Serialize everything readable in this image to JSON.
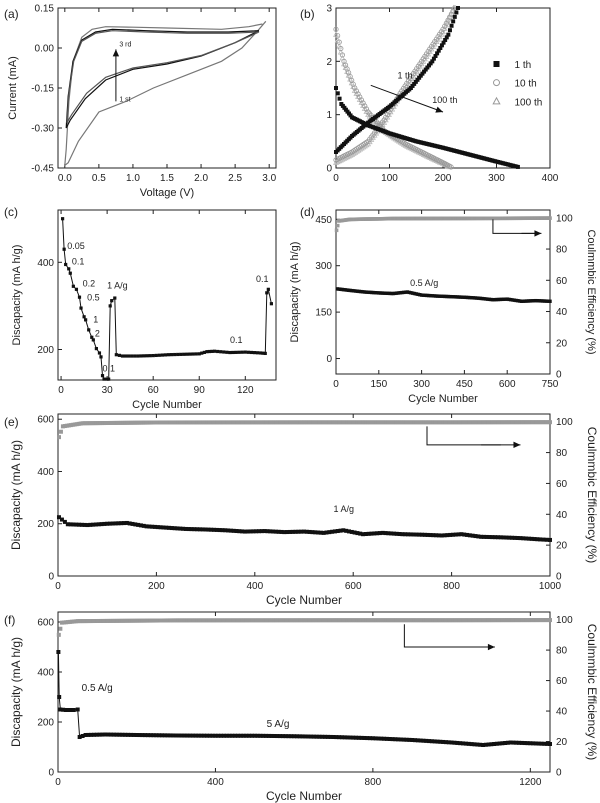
{
  "chart_data": [
    {
      "panel": "(a)",
      "type": "line",
      "xlabel": "Voltage (V)",
      "ylabel": "Current (mA)",
      "xlim": [
        -0.1,
        3.1
      ],
      "ylim": [
        -0.45,
        0.15
      ],
      "xticks": [
        0.0,
        0.5,
        1.0,
        1.5,
        2.0,
        2.5,
        3.0
      ],
      "xtick_labels": [
        "0.0",
        "0.5",
        "1.0",
        "1.5",
        "2.0",
        "2.5",
        "3.0"
      ],
      "yticks": [
        -0.45,
        -0.3,
        -0.15,
        0.0,
        0.15
      ],
      "ytick_labels": [
        "-0.45",
        "-0.30",
        "-0.15",
        "0.00",
        "0.15"
      ],
      "annotations": [
        "3 rd",
        "1 st"
      ],
      "series": [
        {
          "color": "#777777",
          "points": [
            [
              2.9,
              0.09
            ],
            [
              2.7,
              0.08
            ],
            [
              2.3,
              0.07
            ],
            [
              1.5,
              0.075
            ],
            [
              1.0,
              0.078
            ],
            [
              0.6,
              0.08
            ],
            [
              0.4,
              0.07
            ],
            [
              0.25,
              0.04
            ],
            [
              0.12,
              -0.05
            ],
            [
              0.06,
              -0.2
            ],
            [
              0.02,
              -0.38
            ],
            [
              0.0,
              -0.44
            ],
            [
              0.05,
              -0.43
            ],
            [
              0.2,
              -0.35
            ],
            [
              0.5,
              -0.24
            ],
            [
              0.9,
              -0.2
            ],
            [
              1.3,
              -0.15
            ],
            [
              1.8,
              -0.1
            ],
            [
              2.3,
              -0.05
            ],
            [
              2.6,
              0.0
            ],
            [
              2.85,
              0.07
            ],
            [
              2.95,
              0.1
            ]
          ]
        },
        {
          "color": "#111111",
          "points": [
            [
              2.85,
              0.065
            ],
            [
              2.4,
              0.06
            ],
            [
              1.8,
              0.06
            ],
            [
              1.2,
              0.065
            ],
            [
              0.7,
              0.07
            ],
            [
              0.45,
              0.06
            ],
            [
              0.25,
              0.03
            ],
            [
              0.12,
              -0.05
            ],
            [
              0.05,
              -0.18
            ],
            [
              0.02,
              -0.3
            ],
            [
              0.08,
              -0.27
            ],
            [
              0.3,
              -0.19
            ],
            [
              0.6,
              -0.12
            ],
            [
              1.0,
              -0.08
            ],
            [
              1.5,
              -0.06
            ],
            [
              2.0,
              -0.03
            ],
            [
              2.5,
              0.02
            ],
            [
              2.85,
              0.065
            ]
          ]
        },
        {
          "color": "#555555",
          "points": [
            [
              2.85,
              0.06
            ],
            [
              2.4,
              0.055
            ],
            [
              1.8,
              0.055
            ],
            [
              1.2,
              0.06
            ],
            [
              0.7,
              0.065
            ],
            [
              0.45,
              0.055
            ],
            [
              0.25,
              0.025
            ],
            [
              0.13,
              -0.05
            ],
            [
              0.06,
              -0.17
            ],
            [
              0.03,
              -0.28
            ],
            [
              0.1,
              -0.25
            ],
            [
              0.32,
              -0.17
            ],
            [
              0.6,
              -0.11
            ],
            [
              1.0,
              -0.075
            ],
            [
              1.5,
              -0.055
            ],
            [
              2.0,
              -0.028
            ],
            [
              2.5,
              0.02
            ],
            [
              2.85,
              0.06
            ]
          ]
        }
      ]
    },
    {
      "panel": "(b)",
      "type": "scatter",
      "xlim": [
        0,
        400
      ],
      "ylim": [
        0,
        3
      ],
      "xticks": [
        0,
        100,
        200,
        300,
        400
      ],
      "yticks": [
        0,
        1,
        2,
        3
      ],
      "legend": [
        "1 th",
        "10 th",
        "100 th"
      ],
      "legend_position": "right",
      "annotations": [
        "1 th",
        "100 th"
      ],
      "series": [
        {
          "name": "1 th",
          "marker": "square",
          "color": "#111111",
          "discharge": [
            [
              0,
              1.5
            ],
            [
              10,
              1.2
            ],
            [
              30,
              0.95
            ],
            [
              60,
              0.8
            ],
            [
              100,
              0.65
            ],
            [
              150,
              0.5
            ],
            [
              200,
              0.38
            ],
            [
              250,
              0.25
            ],
            [
              300,
              0.12
            ],
            [
              340,
              0.02
            ]
          ],
          "charge": [
            [
              0,
              0.3
            ],
            [
              30,
              0.6
            ],
            [
              60,
              0.85
            ],
            [
              100,
              1.15
            ],
            [
              140,
              1.5
            ],
            [
              180,
              2.0
            ],
            [
              210,
              2.5
            ],
            [
              228,
              3.0
            ]
          ]
        },
        {
          "name": "10 th",
          "marker": "star",
          "color": "#999999",
          "discharge": [
            [
              0,
              2.6
            ],
            [
              15,
              2.0
            ],
            [
              35,
              1.5
            ],
            [
              60,
              1.05
            ],
            [
              90,
              0.7
            ],
            [
              130,
              0.45
            ],
            [
              170,
              0.25
            ],
            [
              200,
              0.1
            ],
            [
              215,
              0.02
            ]
          ],
          "charge": [
            [
              0,
              0.15
            ],
            [
              30,
              0.3
            ],
            [
              60,
              0.5
            ],
            [
              90,
              0.9
            ],
            [
              120,
              1.4
            ],
            [
              160,
              2.0
            ],
            [
              200,
              2.6
            ],
            [
              222,
              3.0
            ]
          ]
        },
        {
          "name": "100 th",
          "marker": "triangle",
          "color": "#bbbbbb",
          "discharge": [
            [
              0,
              2.5
            ],
            [
              15,
              1.95
            ],
            [
              35,
              1.45
            ],
            [
              60,
              1.0
            ],
            [
              90,
              0.68
            ],
            [
              130,
              0.42
            ],
            [
              170,
              0.22
            ],
            [
              200,
              0.08
            ],
            [
              212,
              0.02
            ]
          ],
          "charge": [
            [
              0,
              0.1
            ],
            [
              30,
              0.25
            ],
            [
              60,
              0.45
            ],
            [
              90,
              0.85
            ],
            [
              120,
              1.35
            ],
            [
              160,
              1.95
            ],
            [
              200,
              2.55
            ],
            [
              220,
              3.0
            ]
          ]
        }
      ]
    },
    {
      "panel": "(c)",
      "type": "line",
      "xlabel": "Cycle Number",
      "ylabel": "Discapacity (mA h/g)",
      "xlim": [
        -2,
        140
      ],
      "ylim": [
        130,
        520
      ],
      "xticks": [
        0,
        30,
        60,
        90,
        120
      ],
      "yticks": [
        200,
        400
      ],
      "annotations": [
        "0.05",
        "0.1",
        "0.2",
        "0.5",
        "1",
        "2",
        "0.1",
        "1 A/g",
        "0.1"
      ],
      "points": [
        [
          1,
          500
        ],
        [
          2,
          430
        ],
        [
          3,
          395
        ],
        [
          5,
          385
        ],
        [
          6,
          375
        ],
        [
          8,
          345
        ],
        [
          10,
          338
        ],
        [
          12,
          320
        ],
        [
          13,
          295
        ],
        [
          15,
          275
        ],
        [
          16,
          268
        ],
        [
          18,
          245
        ],
        [
          20,
          228
        ],
        [
          21,
          222
        ],
        [
          23,
          202
        ],
        [
          25,
          192
        ],
        [
          26,
          183
        ],
        [
          27,
          140
        ],
        [
          28,
          132
        ],
        [
          30,
          132
        ],
        [
          31,
          132
        ],
        [
          32,
          300
        ],
        [
          33,
          312
        ],
        [
          35,
          318
        ],
        [
          36,
          188
        ],
        [
          40,
          185
        ],
        [
          50,
          185
        ],
        [
          60,
          186
        ],
        [
          70,
          188
        ],
        [
          80,
          189
        ],
        [
          90,
          190
        ],
        [
          95,
          195
        ],
        [
          100,
          196
        ],
        [
          110,
          193
        ],
        [
          120,
          194
        ],
        [
          130,
          192
        ],
        [
          133,
          191
        ],
        [
          134,
          330
        ],
        [
          135,
          338
        ],
        [
          137,
          305
        ]
      ]
    },
    {
      "panel": "(d)",
      "type": "scatter",
      "xlabel": "Cycle Number",
      "ylabel": "Discapacity (mA h/g)",
      "y2label": "Coulmmbic Efficiency (%)",
      "xlim": [
        0,
        750
      ],
      "ylim": [
        -50,
        480
      ],
      "y2lim": [
        0,
        105
      ],
      "xticks": [
        0,
        150,
        300,
        450,
        600,
        750
      ],
      "yticks": [
        0,
        150,
        300,
        450
      ],
      "y2ticks": [
        0,
        20,
        40,
        60,
        80,
        100
      ],
      "annotations": [
        "0.5 A/g"
      ],
      "capacity": [
        [
          5,
          225
        ],
        [
          50,
          220
        ],
        [
          100,
          215
        ],
        [
          150,
          212
        ],
        [
          200,
          210
        ],
        [
          250,
          215
        ],
        [
          300,
          205
        ],
        [
          350,
          202
        ],
        [
          400,
          200
        ],
        [
          450,
          198
        ],
        [
          500,
          195
        ],
        [
          550,
          190
        ],
        [
          600,
          192
        ],
        [
          650,
          185
        ],
        [
          700,
          187
        ],
        [
          750,
          185
        ]
      ],
      "efficiency": [
        [
          2,
          92
        ],
        [
          10,
          98
        ],
        [
          50,
          99
        ],
        [
          200,
          99.5
        ],
        [
          400,
          99.6
        ],
        [
          600,
          99.7
        ],
        [
          750,
          99.8
        ]
      ]
    },
    {
      "panel": "(e)",
      "type": "scatter",
      "xlabel": "Cycle Number",
      "ylabel": "Discapacity (mA h/g)",
      "y2label": "Coulmmbic Efficiency (%)",
      "xlim": [
        0,
        1000
      ],
      "ylim": [
        0,
        620
      ],
      "y2lim": [
        0,
        105
      ],
      "xticks": [
        0,
        200,
        400,
        600,
        800,
        1000
      ],
      "yticks": [
        0,
        200,
        400,
        600
      ],
      "y2ticks": [
        0,
        20,
        40,
        60,
        80,
        100
      ],
      "annotations": [
        "1 A/g"
      ],
      "capacity": [
        [
          2,
          225
        ],
        [
          20,
          198
        ],
        [
          60,
          195
        ],
        [
          100,
          200
        ],
        [
          140,
          203
        ],
        [
          180,
          190
        ],
        [
          220,
          185
        ],
        [
          260,
          180
        ],
        [
          300,
          178
        ],
        [
          340,
          175
        ],
        [
          380,
          170
        ],
        [
          420,
          172
        ],
        [
          460,
          168
        ],
        [
          500,
          170
        ],
        [
          540,
          165
        ],
        [
          580,
          175
        ],
        [
          620,
          160
        ],
        [
          660,
          165
        ],
        [
          700,
          160
        ],
        [
          740,
          158
        ],
        [
          780,
          155
        ],
        [
          820,
          160
        ],
        [
          860,
          150
        ],
        [
          900,
          148
        ],
        [
          940,
          145
        ],
        [
          980,
          140
        ],
        [
          1000,
          138
        ]
      ],
      "efficiency": [
        [
          2,
          90
        ],
        [
          10,
          97
        ],
        [
          50,
          99
        ],
        [
          200,
          99.5
        ],
        [
          500,
          99.6
        ],
        [
          800,
          99.6
        ],
        [
          1000,
          99.7
        ]
      ]
    },
    {
      "panel": "(f)",
      "type": "scatter",
      "xlabel": "Cycle Number",
      "ylabel": "Discapacity (mA h/g)",
      "y2label": "Coulmmbic Efficiency (%)",
      "xlim": [
        0,
        1250
      ],
      "ylim": [
        0,
        640
      ],
      "y2lim": [
        0,
        105
      ],
      "xticks": [
        0,
        400,
        800,
        1200
      ],
      "yticks": [
        0,
        200,
        400,
        600
      ],
      "y2ticks": [
        0,
        20,
        40,
        60,
        80,
        100
      ],
      "annotations": [
        "0.5 A/g",
        "5 A/g"
      ],
      "capacity": [
        [
          1,
          480
        ],
        [
          3,
          300
        ],
        [
          6,
          250
        ],
        [
          20,
          248
        ],
        [
          40,
          248
        ],
        [
          50,
          250
        ],
        [
          55,
          140
        ],
        [
          70,
          148
        ],
        [
          120,
          150
        ],
        [
          200,
          148
        ],
        [
          300,
          146
        ],
        [
          400,
          145
        ],
        [
          500,
          145
        ],
        [
          600,
          143
        ],
        [
          700,
          140
        ],
        [
          800,
          135
        ],
        [
          900,
          128
        ],
        [
          1000,
          118
        ],
        [
          1080,
          108
        ],
        [
          1150,
          118
        ],
        [
          1200,
          115
        ],
        [
          1250,
          112
        ]
      ],
      "efficiency": [
        [
          2,
          90
        ],
        [
          10,
          98
        ],
        [
          50,
          99
        ],
        [
          300,
          99.5
        ],
        [
          700,
          99.6
        ],
        [
          1000,
          99.6
        ],
        [
          1250,
          99.7
        ]
      ]
    }
  ],
  "panel_labels": [
    "(a)",
    "(b)",
    "(c)",
    "(d)",
    "(e)",
    "(f)"
  ]
}
